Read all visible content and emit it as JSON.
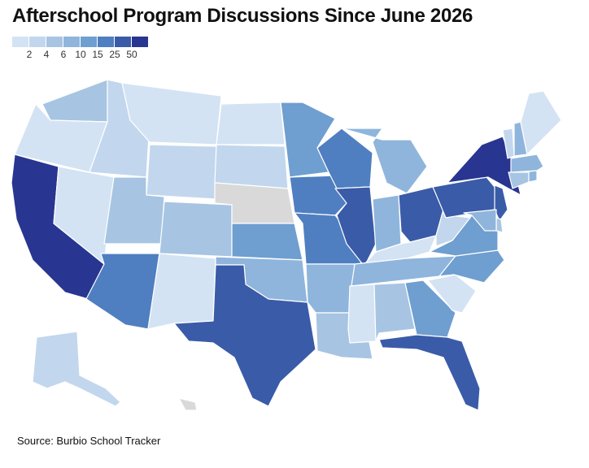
{
  "title": "Afterschool Program Discussions Since June 2026",
  "source": "Source: Burbio School Tracker",
  "legend": {
    "ticks": [
      "2",
      "4",
      "6",
      "10",
      "15",
      "25",
      "50"
    ],
    "colors": [
      "#d3e3f3",
      "#c2d7ed",
      "#a7c5e2",
      "#8fb5dc",
      "#6f9ed0",
      "#4f7fc0",
      "#3a5ba8",
      "#283591"
    ]
  },
  "no_data_color": "#d9d9d9",
  "states": {
    "WA": {
      "bin": 2
    },
    "OR": {
      "bin": 0
    },
    "CA": {
      "bin": 7
    },
    "NV": {
      "bin": 0
    },
    "ID": {
      "bin": 1
    },
    "MT": {
      "bin": 0
    },
    "WY": {
      "bin": 1
    },
    "UT": {
      "bin": 2
    },
    "AZ": {
      "bin": 5
    },
    "NM": {
      "bin": 0
    },
    "CO": {
      "bin": 2
    },
    "ND": {
      "bin": 0
    },
    "SD": {
      "bin": 1
    },
    "NE": {
      "bin": null
    },
    "KS": {
      "bin": 4
    },
    "OK": {
      "bin": 3
    },
    "TX": {
      "bin": 6
    },
    "MN": {
      "bin": 4
    },
    "IA": {
      "bin": 5
    },
    "MO": {
      "bin": 5
    },
    "AR": {
      "bin": 3
    },
    "LA": {
      "bin": 2
    },
    "WI": {
      "bin": 5
    },
    "IL": {
      "bin": 6
    },
    "MI": {
      "bin": 3
    },
    "IN": {
      "bin": 3
    },
    "OH": {
      "bin": 6
    },
    "KY": {
      "bin": 0
    },
    "TN": {
      "bin": 3
    },
    "MS": {
      "bin": 0
    },
    "AL": {
      "bin": 2
    },
    "GA": {
      "bin": 4
    },
    "FL": {
      "bin": 6
    },
    "SC": {
      "bin": 0
    },
    "NC": {
      "bin": 4
    },
    "VA": {
      "bin": 4
    },
    "WV": {
      "bin": 1
    },
    "PA": {
      "bin": 6
    },
    "NY": {
      "bin": 7
    },
    "NJ": {
      "bin": 6
    },
    "DE": {
      "bin": 2
    },
    "MD": {
      "bin": 3
    },
    "CT": {
      "bin": 2
    },
    "RI": {
      "bin": 3
    },
    "MA": {
      "bin": 3
    },
    "VT": {
      "bin": 1
    },
    "NH": {
      "bin": 3
    },
    "ME": {
      "bin": 0
    },
    "AK": {
      "bin": 1
    },
    "HI": {
      "bin": null
    }
  }
}
